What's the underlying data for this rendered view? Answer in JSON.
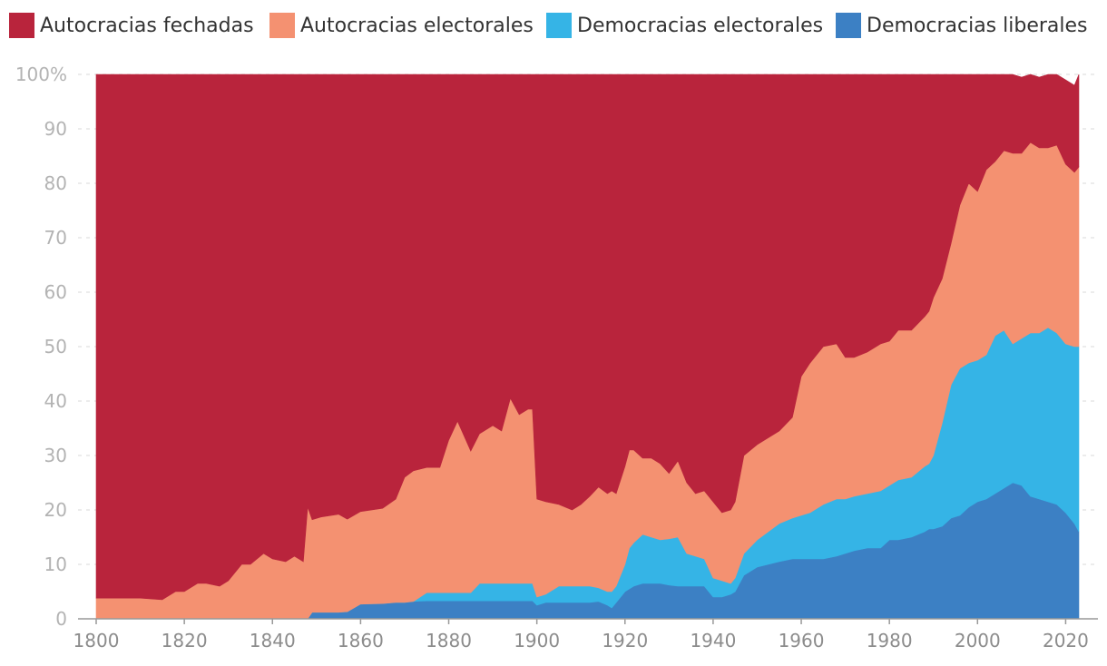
{
  "chart_data": {
    "type": "area",
    "stacked": true,
    "title": "",
    "xlabel": "",
    "ylabel": "",
    "xlim": [
      1800,
      2023
    ],
    "ylim": [
      0,
      100
    ],
    "y_ticks": [
      0,
      10,
      20,
      30,
      40,
      50,
      60,
      70,
      80,
      90,
      100
    ],
    "y_tick_labels": [
      "0",
      "10",
      "20",
      "30",
      "40",
      "50",
      "60",
      "70",
      "80",
      "90",
      "100%"
    ],
    "x_ticks": [
      1800,
      1820,
      1840,
      1860,
      1880,
      1900,
      1920,
      1940,
      1960,
      1980,
      2000,
      2020
    ],
    "x_tick_labels": [
      "1800",
      "1820",
      "1840",
      "1860",
      "1880",
      "1900",
      "1920",
      "1940",
      "1960",
      "1980",
      "2000",
      "2020"
    ],
    "grid": true,
    "legend_position": "top",
    "x": [
      1800,
      1805,
      1810,
      1815,
      1818,
      1820,
      1823,
      1825,
      1828,
      1830,
      1833,
      1835,
      1838,
      1840,
      1843,
      1845,
      1847,
      1848,
      1849,
      1851,
      1855,
      1857,
      1860,
      1865,
      1868,
      1870,
      1872,
      1875,
      1878,
      1880,
      1882,
      1885,
      1887,
      1888,
      1890,
      1892,
      1894,
      1896,
      1898,
      1899,
      1900,
      1902,
      1905,
      1908,
      1910,
      1912,
      1914,
      1916,
      1917,
      1918,
      1920,
      1921,
      1922,
      1924,
      1926,
      1928,
      1930,
      1932,
      1934,
      1936,
      1938,
      1940,
      1942,
      1944,
      1945,
      1947,
      1950,
      1955,
      1958,
      1960,
      1962,
      1965,
      1968,
      1970,
      1972,
      1975,
      1978,
      1980,
      1982,
      1985,
      1988,
      1989,
      1990,
      1992,
      1994,
      1996,
      1998,
      2000,
      2002,
      2004,
      2006,
      2008,
      2010,
      2012,
      2014,
      2016,
      2018,
      2020,
      2022,
      2023
    ],
    "series": [
      {
        "name": "Democracias liberales",
        "color": "#3c80c4",
        "values": [
          0,
          0,
          0,
          0,
          0,
          0,
          0,
          0,
          0,
          0,
          0,
          0,
          0,
          0,
          0,
          0,
          0,
          0,
          1.2,
          1.2,
          1.2,
          1.3,
          2.7,
          2.8,
          3.0,
          3.0,
          3.2,
          3.3,
          3.3,
          3.3,
          3.3,
          3.3,
          3.3,
          3.3,
          3.3,
          3.3,
          3.3,
          3.3,
          3.3,
          3.3,
          2.5,
          3.0,
          3.0,
          3.0,
          3.0,
          3.0,
          3.2,
          2.5,
          2.0,
          3.0,
          5.0,
          5.5,
          6.0,
          6.5,
          6.5,
          6.5,
          6.2,
          6.0,
          6.0,
          6.0,
          6.0,
          4.0,
          4.0,
          4.5,
          5.0,
          8.0,
          9.5,
          10.5,
          11.0,
          11.0,
          11.0,
          11.0,
          11.5,
          12.0,
          12.5,
          13.0,
          13.0,
          14.5,
          14.5,
          15.0,
          16.0,
          16.5,
          16.5,
          17.0,
          18.5,
          19.0,
          20.5,
          21.5,
          22.0,
          23.0,
          24.0,
          25.0,
          24.5,
          22.5,
          22.0,
          21.5,
          21.0,
          19.5,
          17.5,
          16.0
        ]
      },
      {
        "name": "Democracias electorales",
        "color": "#35b4e6",
        "values": [
          0,
          0,
          0,
          0,
          0,
          0,
          0,
          0,
          0,
          0,
          0,
          0,
          0,
          0,
          0,
          0,
          0,
          0,
          0,
          0,
          0,
          0,
          0,
          0,
          0,
          0,
          0,
          1.5,
          1.5,
          1.5,
          1.5,
          1.5,
          3.2,
          3.2,
          3.2,
          3.2,
          3.2,
          3.2,
          3.2,
          3.2,
          1.5,
          1.5,
          3.0,
          3.0,
          3.0,
          3.0,
          2.5,
          2.5,
          3.0,
          3.0,
          5.0,
          7.5,
          8.0,
          9.0,
          8.5,
          8.0,
          8.5,
          9.0,
          6.0,
          5.5,
          5.0,
          3.5,
          3.0,
          2.0,
          2.5,
          4.0,
          5.0,
          7.0,
          7.5,
          8.0,
          8.5,
          10.0,
          10.5,
          10.0,
          10.0,
          10.0,
          10.5,
          10.0,
          11.0,
          11.0,
          12.0,
          12.0,
          13.5,
          19.0,
          24.5,
          27.0,
          26.5,
          26.0,
          26.5,
          29.0,
          29.0,
          25.5,
          27.0,
          30.0,
          30.5,
          32.0,
          31.5,
          31.0,
          32.5,
          34.0
        ]
      },
      {
        "name": "Autocracias electorales",
        "color": "#f49171",
        "values": [
          3.8,
          3.8,
          3.8,
          3.5,
          5.0,
          5.0,
          6.5,
          6.5,
          6.0,
          7.0,
          10.0,
          10.0,
          12.0,
          11.0,
          10.5,
          11.5,
          10.5,
          20.5,
          17.0,
          17.5,
          18.0,
          17.0,
          17.0,
          17.5,
          19.0,
          23.0,
          24.0,
          23.0,
          23.0,
          28.0,
          31.5,
          26.0,
          27.5,
          28.0,
          29.0,
          28.0,
          34.0,
          31.0,
          32.0,
          32.0,
          18.0,
          17.0,
          15.0,
          14.0,
          15.0,
          16.5,
          18.5,
          18.0,
          18.5,
          17.0,
          18.0,
          18.0,
          17.0,
          14.0,
          14.5,
          14.0,
          12.0,
          14.0,
          13.0,
          11.5,
          12.5,
          14.0,
          12.5,
          13.5,
          14.0,
          18.0,
          17.5,
          17.0,
          18.5,
          25.5,
          27.5,
          29.0,
          28.5,
          26.0,
          25.5,
          26.0,
          27.0,
          26.5,
          27.5,
          27.0,
          27.5,
          28.0,
          29.0,
          26.5,
          26.0,
          30.0,
          33.0,
          31.0,
          34.0,
          32.0,
          33.0,
          35.0,
          34.0,
          35.0,
          34.0,
          33.0,
          34.5,
          33.0,
          32.0,
          33.0
        ]
      },
      {
        "name": "Autocracias fechadas",
        "color": "#b9243c",
        "values": [
          96.2,
          96.2,
          96.2,
          96.5,
          95.0,
          95.0,
          93.5,
          93.5,
          94.0,
          93.0,
          90.0,
          90.0,
          88.0,
          89.0,
          89.5,
          88.5,
          89.5,
          79.5,
          81.8,
          81.3,
          80.8,
          81.7,
          80.3,
          79.7,
          78.0,
          74.0,
          72.8,
          72.2,
          72.2,
          67.2,
          63.7,
          69.2,
          66.0,
          65.5,
          64.5,
          65.5,
          59.5,
          62.5,
          61.5,
          61.5,
          78.0,
          78.5,
          79.0,
          80.0,
          79.0,
          77.5,
          75.8,
          77.0,
          76.5,
          77.0,
          72.0,
          69.0,
          69.0,
          70.5,
          70.5,
          71.5,
          73.3,
          71.0,
          75.0,
          77.0,
          76.5,
          78.5,
          80.5,
          80.0,
          78.5,
          70.0,
          68.0,
          65.5,
          63.0,
          55.5,
          53.0,
          50.0,
          49.5,
          52.0,
          52.0,
          51.0,
          49.5,
          49.0,
          47.0,
          47.0,
          44.5,
          43.5,
          41.0,
          37.5,
          31.0,
          24.0,
          20.0,
          21.5,
          17.5,
          16.0,
          14.0,
          14.5,
          14.0,
          12.5,
          13.0,
          13.5,
          13.0,
          15.5,
          16.0,
          17.0
        ]
      }
    ]
  },
  "legend": {
    "items": [
      {
        "label": "Autocracias fechadas",
        "color": "#b9243c"
      },
      {
        "label": "Autocracias electorales",
        "color": "#f49171"
      },
      {
        "label": "Democracias electorales",
        "color": "#35b4e6"
      },
      {
        "label": "Democracias liberales",
        "color": "#3c80c4"
      }
    ]
  }
}
